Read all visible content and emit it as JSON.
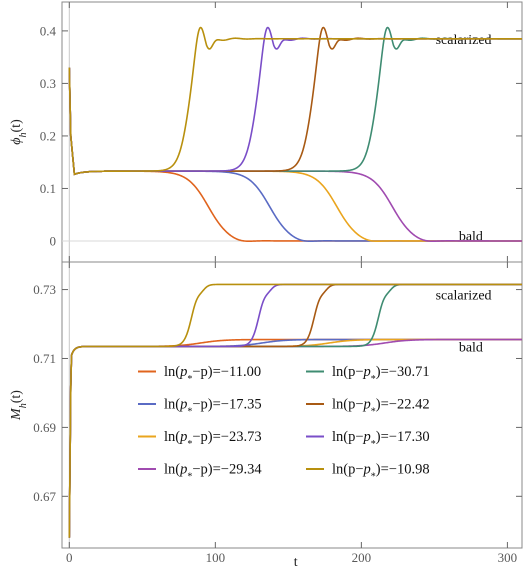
{
  "chart_data": [
    {
      "type": "line",
      "panel": "top",
      "ylabel": "ϕ_h(t)",
      "ylabel_main": "ϕ",
      "ylabel_sub": "h",
      "ylabel_arg": "(t)",
      "xlim": [
        -5,
        310
      ],
      "ylim": [
        -0.04,
        0.455
      ],
      "x_ticks": [
        0,
        100,
        200,
        300
      ],
      "y_ticks": [
        0,
        0.1,
        0.2,
        0.3,
        0.4
      ],
      "y_tick_labels": [
        "0",
        "0.1",
        "0.2",
        "0.3",
        "0.4"
      ],
      "annotations": [
        {
          "text": "scalarized",
          "x": 270,
          "y": 0.385
        },
        {
          "text": "bald",
          "x": 275,
          "y": 0.01
        }
      ],
      "series": [
        {
          "name": "ln(p*−p)=−11.00",
          "color": "#e0641e",
          "outcome": "bald",
          "transition_t": 95,
          "x": [
            0,
            20,
            60,
            80,
            95,
            110,
            120,
            310
          ],
          "y": [
            0.13,
            0.133,
            0.128,
            0.11,
            0.05,
            0.0,
            -0.002,
            0.0
          ]
        },
        {
          "name": "ln(p*−p)=−17.35",
          "color": "#5a6bc4",
          "outcome": "bald",
          "transition_t": 137
        },
        {
          "name": "ln(p*−p)=−23.73",
          "color": "#eaa51e",
          "outcome": "bald",
          "transition_t": 183
        },
        {
          "name": "ln(p*−p)=−29.34",
          "color": "#a04bb0",
          "outcome": "bald",
          "transition_t": 221
        },
        {
          "name": "ln(p−p*)=−30.71",
          "color": "#3f8c72",
          "outcome": "scalarized",
          "transition_t": 210
        },
        {
          "name": "ln(p−p*)=−22.42",
          "color": "#a85a14",
          "outcome": "scalarized",
          "transition_t": 166
        },
        {
          "name": "ln(p−p*)=−17.30",
          "color": "#7a4ec8",
          "outcome": "scalarized",
          "transition_t": 128
        },
        {
          "name": "ln(p−p*)=−10.98",
          "color": "#b8900e",
          "outcome": "scalarized",
          "transition_t": 82
        }
      ],
      "plateaus": {
        "initial": 0.133,
        "scalarized": 0.385,
        "bald": 0.0,
        "overshoot_peak": 0.43
      }
    },
    {
      "type": "line",
      "panel": "bottom",
      "xlabel": "t",
      "ylabel": "M_h(t)",
      "ylabel_main": "M",
      "ylabel_sub": "h",
      "ylabel_arg": "(t)",
      "xlim": [
        -5,
        310
      ],
      "ylim": [
        0.655,
        0.738
      ],
      "x_ticks": [
        0,
        100,
        200,
        300
      ],
      "y_ticks": [
        0.67,
        0.69,
        0.71,
        0.73
      ],
      "y_tick_labels": [
        "0.67",
        "0.69",
        "0.71",
        "0.73"
      ],
      "annotations": [
        {
          "text": "scalarized",
          "x": 270,
          "y": 0.7285
        },
        {
          "text": "bald",
          "x": 275,
          "y": 0.7135
        }
      ],
      "plateaus": {
        "initial": 0.7135,
        "scalarized": 0.7315,
        "bald": 0.7155,
        "start": 0.658
      },
      "legend": {
        "placement": "center",
        "columns": [
          [
            {
              "prefix": "ln(",
              "p1": "p",
              "sub1": "*",
              "mid": "−p",
              "p2": "",
              "sub2": "",
              "suffix": ")=−11.00",
              "color": "#e0641e"
            },
            {
              "prefix": "ln(",
              "p1": "p",
              "sub1": "*",
              "mid": "−p",
              "p2": "",
              "sub2": "",
              "suffix": ")=−17.35",
              "color": "#5a6bc4"
            },
            {
              "prefix": "ln(",
              "p1": "p",
              "sub1": "*",
              "mid": "−p",
              "p2": "",
              "sub2": "",
              "suffix": ")=−23.73",
              "color": "#eaa51e"
            },
            {
              "prefix": "ln(",
              "p1": "p",
              "sub1": "*",
              "mid": "−p",
              "p2": "",
              "sub2": "",
              "suffix": ")=−29.34",
              "color": "#a04bb0"
            }
          ],
          [
            {
              "prefix": "ln(p−",
              "p1": "p",
              "sub1": "*",
              "mid": "",
              "p2": "",
              "sub2": "",
              "suffix": ")=−30.71",
              "color": "#3f8c72"
            },
            {
              "prefix": "ln(p−",
              "p1": "p",
              "sub1": "*",
              "mid": "",
              "p2": "",
              "sub2": "",
              "suffix": ")=−22.42",
              "color": "#a85a14"
            },
            {
              "prefix": "ln(p−",
              "p1": "p",
              "sub1": "*",
              "mid": "",
              "p2": "",
              "sub2": "",
              "suffix": ")=−17.30",
              "color": "#7a4ec8"
            },
            {
              "prefix": "ln(p−",
              "p1": "p",
              "sub1": "*",
              "mid": "",
              "p2": "",
              "sub2": "",
              "suffix": ")=−10.98",
              "color": "#b8900e"
            }
          ]
        ]
      }
    }
  ]
}
